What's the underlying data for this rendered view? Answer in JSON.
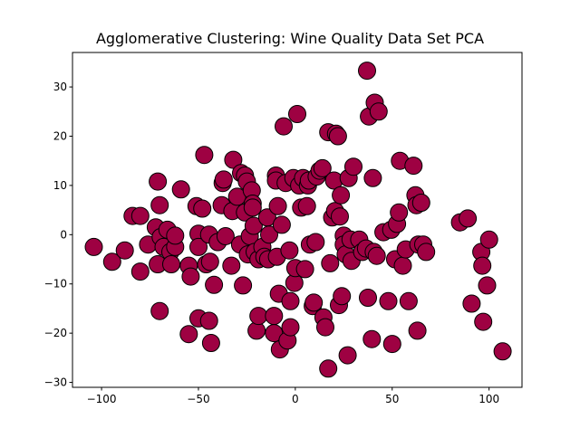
{
  "chart_data": {
    "type": "scatter",
    "title": "Agglomerative Clustering: Wine Quality Data Set PCA",
    "xlabel": "",
    "ylabel": "",
    "xlim": [
      -115,
      117
    ],
    "ylim": [
      -31,
      37
    ],
    "xticks": [
      -100,
      -50,
      0,
      50,
      100
    ],
    "yticks": [
      -30,
      -20,
      -10,
      0,
      10,
      20,
      30
    ],
    "grid": false,
    "marker_color": "#9e0142",
    "marker_edge_color": "#000000",
    "series": [
      {
        "points": [
          [
            -104.0,
            -2.5
          ],
          [
            -94.5,
            -5.5
          ],
          [
            -88.0,
            -3.2
          ],
          [
            -84.0,
            3.8
          ],
          [
            -80.0,
            3.8
          ],
          [
            -80.0,
            -7.5
          ],
          [
            -76.0,
            -2.0
          ],
          [
            -72.0,
            1.5
          ],
          [
            -71.0,
            10.8
          ],
          [
            -70.0,
            6.0
          ],
          [
            -71.0,
            -6.0
          ],
          [
            -69.5,
            -0.5
          ],
          [
            -68.0,
            -2.5
          ],
          [
            -66.0,
            1.0
          ],
          [
            -64.5,
            -3.5
          ],
          [
            -64.0,
            -6.0
          ],
          [
            -62.0,
            -2.5
          ],
          [
            -62.0,
            -0.2
          ],
          [
            -70.0,
            -15.5
          ],
          [
            -59.0,
            9.2
          ],
          [
            -55.0,
            -6.3
          ],
          [
            -54.0,
            -8.5
          ],
          [
            -55.0,
            -20.2
          ],
          [
            -51.0,
            5.8
          ],
          [
            -50.0,
            0.2
          ],
          [
            -50.0,
            -2.5
          ],
          [
            -50.0,
            -17.0
          ],
          [
            -48.0,
            5.3
          ],
          [
            -47.0,
            16.2
          ],
          [
            -46.0,
            -6.0
          ],
          [
            -44.5,
            -17.5
          ],
          [
            -44.0,
            -5.5
          ],
          [
            -44.5,
            0.0
          ],
          [
            -43.5,
            -22.0
          ],
          [
            -42.0,
            -10.2
          ],
          [
            -40.0,
            -1.5
          ],
          [
            -37.5,
            10.5
          ],
          [
            -38.0,
            6.0
          ],
          [
            -37.0,
            11.2
          ],
          [
            -36.0,
            -0.3
          ],
          [
            -33.0,
            -6.3
          ],
          [
            -32.0,
            15.2
          ],
          [
            -32.5,
            4.8
          ],
          [
            -30.0,
            7.7
          ],
          [
            -28.0,
            12.5
          ],
          [
            -28.5,
            -2.0
          ],
          [
            -27.0,
            -10.3
          ],
          [
            -26.0,
            12.0
          ],
          [
            -25.0,
            10.8
          ],
          [
            -26.0,
            4.5
          ],
          [
            -24.5,
            -4.0
          ],
          [
            -23.5,
            -0.3
          ],
          [
            -22.5,
            9.0
          ],
          [
            -22.0,
            6.3
          ],
          [
            -22.0,
            5.5
          ],
          [
            -21.5,
            1.8
          ],
          [
            -21.0,
            -3.5
          ],
          [
            -20.0,
            -19.5
          ],
          [
            -19.0,
            -16.5
          ],
          [
            -19.0,
            -5.0
          ],
          [
            -17.0,
            -2.5
          ],
          [
            -16.0,
            -4.5
          ],
          [
            -14.5,
            3.5
          ],
          [
            -14.0,
            -5.0
          ],
          [
            -13.5,
            0.0
          ],
          [
            -11.0,
            -16.5
          ],
          [
            -11.0,
            -20.0
          ],
          [
            -10.0,
            12.0
          ],
          [
            -10.0,
            11.0
          ],
          [
            -9.5,
            -4.5
          ],
          [
            -9.0,
            5.8
          ],
          [
            -8.5,
            -12.0
          ],
          [
            -8.0,
            -23.3
          ],
          [
            -7.0,
            2.0
          ],
          [
            -6.0,
            22.0
          ],
          [
            -5.0,
            10.5
          ],
          [
            -4.0,
            -21.5
          ],
          [
            -3.0,
            -3.2
          ],
          [
            -2.5,
            -18.8
          ],
          [
            -2.5,
            -13.5
          ],
          [
            -1.0,
            11.5
          ],
          [
            -0.5,
            -9.8
          ],
          [
            0.0,
            -6.8
          ],
          [
            1.0,
            24.5
          ],
          [
            2.0,
            10.0
          ],
          [
            3.0,
            5.5
          ],
          [
            4.0,
            11.5
          ],
          [
            5.0,
            -7.0
          ],
          [
            6.0,
            5.8
          ],
          [
            6.5,
            10.0
          ],
          [
            7.0,
            11.0
          ],
          [
            7.5,
            -2.0
          ],
          [
            9.0,
            -14.5
          ],
          [
            9.5,
            -13.8
          ],
          [
            10.5,
            -1.5
          ],
          [
            11.0,
            11.8
          ],
          [
            12.5,
            13.0
          ],
          [
            14.0,
            13.5
          ],
          [
            14.5,
            -16.8
          ],
          [
            15.5,
            -18.8
          ],
          [
            17.0,
            20.8
          ],
          [
            17.0,
            -27.2
          ],
          [
            18.0,
            -5.8
          ],
          [
            19.0,
            3.5
          ],
          [
            20.0,
            11.0
          ],
          [
            20.5,
            4.8
          ],
          [
            21.0,
            20.5
          ],
          [
            22.0,
            20.0
          ],
          [
            22.5,
            -14.3
          ],
          [
            23.0,
            3.7
          ],
          [
            23.5,
            8.0
          ],
          [
            24.0,
            -12.5
          ],
          [
            25.0,
            -0.2
          ],
          [
            25.0,
            -2.0
          ],
          [
            26.0,
            -4.0
          ],
          [
            27.0,
            -24.5
          ],
          [
            27.5,
            11.5
          ],
          [
            28.5,
            -1.0
          ],
          [
            29.0,
            -5.3
          ],
          [
            30.0,
            13.8
          ],
          [
            33.0,
            -1.0
          ],
          [
            34.5,
            -3.5
          ],
          [
            36.5,
            -2.8
          ],
          [
            37.0,
            33.3
          ],
          [
            37.5,
            -12.8
          ],
          [
            38.0,
            24.0
          ],
          [
            39.5,
            -21.2
          ],
          [
            40.0,
            11.5
          ],
          [
            41.0,
            26.8
          ],
          [
            40.5,
            -3.5
          ],
          [
            42.0,
            -4.3
          ],
          [
            43.0,
            25.0
          ],
          [
            45.5,
            0.5
          ],
          [
            48.0,
            -13.5
          ],
          [
            49.5,
            1.0
          ],
          [
            50.0,
            -22.2
          ],
          [
            51.5,
            -5.0
          ],
          [
            52.5,
            2.2
          ],
          [
            53.5,
            4.5
          ],
          [
            54.0,
            15.0
          ],
          [
            55.5,
            -6.3
          ],
          [
            57.0,
            -3.0
          ],
          [
            58.5,
            -13.5
          ],
          [
            61.0,
            14.0
          ],
          [
            62.0,
            8.0
          ],
          [
            62.5,
            6.0
          ],
          [
            63.0,
            -19.5
          ],
          [
            63.5,
            -2.0
          ],
          [
            65.0,
            6.5
          ],
          [
            66.0,
            -2.0
          ],
          [
            67.5,
            -3.5
          ],
          [
            85.0,
            2.5
          ],
          [
            89.0,
            3.3
          ],
          [
            91.0,
            -14.0
          ],
          [
            96.0,
            -3.5
          ],
          [
            96.5,
            -6.3
          ],
          [
            97.0,
            -17.7
          ],
          [
            99.0,
            -10.3
          ],
          [
            100.0,
            -1.0
          ],
          [
            107.0,
            -23.7
          ]
        ]
      }
    ]
  }
}
